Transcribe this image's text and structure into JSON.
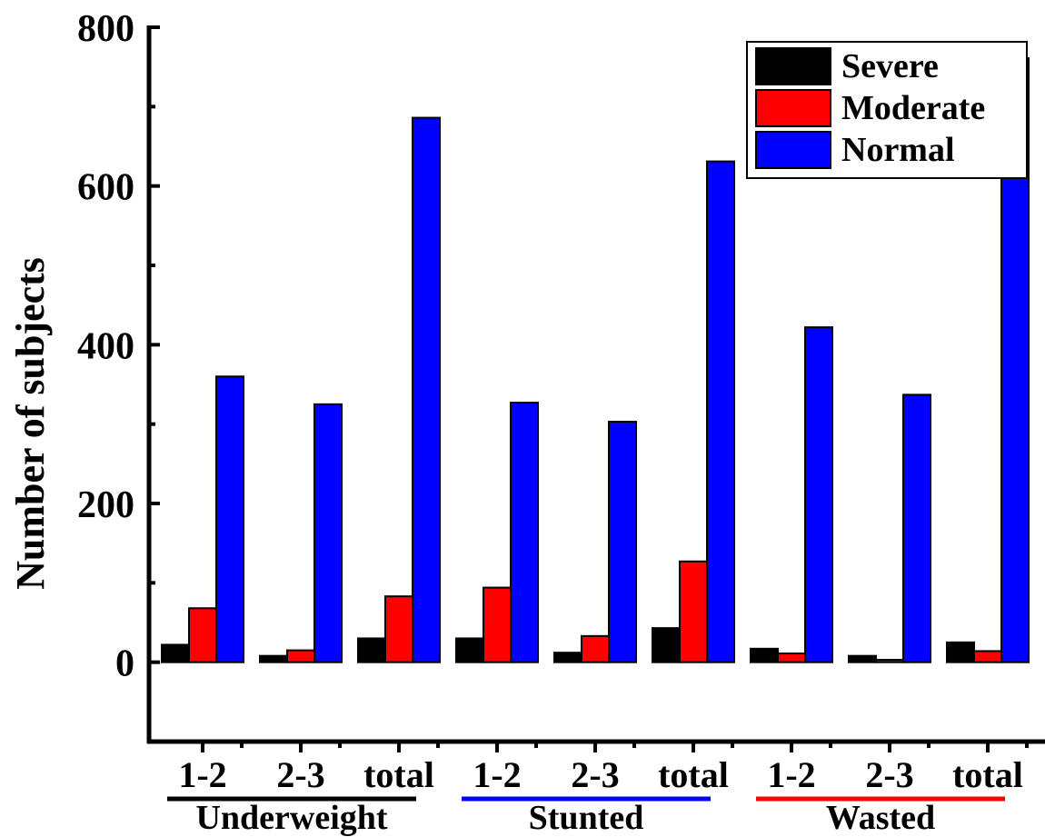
{
  "chart_data": {
    "type": "bar",
    "ylabel": "Number of subjects",
    "ylim": [
      -100,
      800
    ],
    "yticks": [
      "0",
      "200",
      "400",
      "600",
      "800"
    ],
    "categories": [
      "1-2",
      "2-3",
      "total",
      "1-2",
      "2-3",
      "total",
      "1-2",
      "2-3",
      "total"
    ],
    "groups": [
      {
        "name": "Underweight",
        "color": "#000000"
      },
      {
        "name": "Stunted",
        "color": "#0000ff"
      },
      {
        "name": "Wasted",
        "color": "#ff0000"
      }
    ],
    "series": [
      {
        "name": "Severe",
        "color": "#000000",
        "values": [
          22,
          8,
          30,
          30,
          12,
          43,
          17,
          8,
          25
        ]
      },
      {
        "name": "Moderate",
        "color": "#ff0000",
        "values": [
          68,
          15,
          83,
          94,
          33,
          127,
          11,
          3,
          14
        ]
      },
      {
        "name": "Normal",
        "color": "#0000ff",
        "values": [
          360,
          325,
          686,
          327,
          303,
          631,
          422,
          337,
          761
        ]
      }
    ],
    "legend_position": "top-right",
    "grid": false
  }
}
